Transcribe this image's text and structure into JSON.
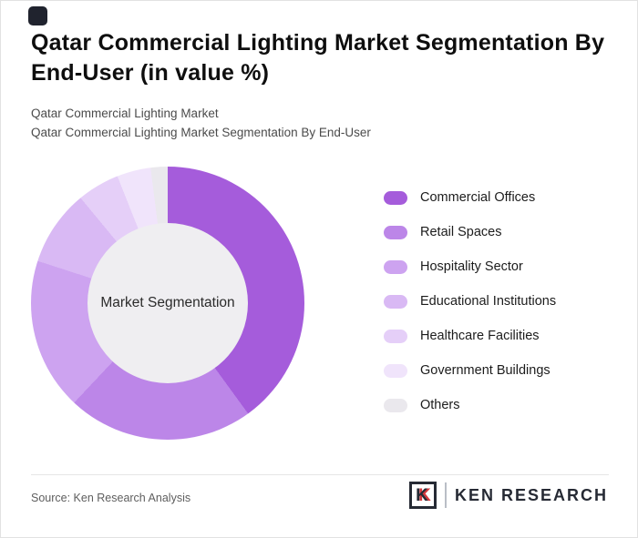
{
  "page": {
    "title": "Qatar Commercial Lighting Market Segmentation By End-User (in value %)",
    "subtitle_line1": "Qatar Commercial Lighting Market",
    "subtitle_line2": "Qatar Commercial Lighting Market Segmentation By End-User"
  },
  "chart_data": {
    "type": "pie",
    "variant": "donut",
    "title": "Qatar Commercial Lighting Market Segmentation By End-User (in value %)",
    "center_label": "Market Segmentation",
    "units": "value %",
    "legend_position": "right",
    "categories": [
      "Commercial Offices",
      "Retail Spaces",
      "Hospitality Sector",
      "Educational Institutions",
      "Healthcare Facilities",
      "Government Buildings",
      "Others"
    ],
    "values": [
      40,
      22,
      18,
      9,
      5,
      4,
      2
    ],
    "colors": [
      "#a55cdb",
      "#bc86e8",
      "#cda3f0",
      "#d9b9f4",
      "#e5cff8",
      "#f0e4fb",
      "#eae8ed"
    ],
    "hole_color": "#efeef1"
  },
  "footer": {
    "source": "Source: Ken Research Analysis",
    "logo_letter": "K",
    "logo_text": "KEN RESEARCH"
  }
}
